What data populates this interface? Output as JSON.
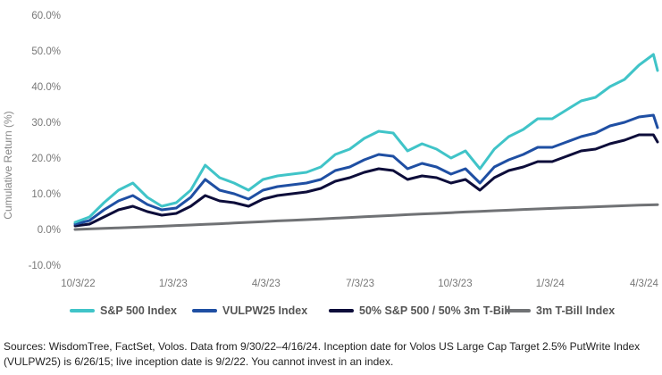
{
  "chart_data": {
    "type": "line",
    "ylabel": "Cumulative Return (%)",
    "ylim": [
      -10,
      60
    ],
    "yticks": [
      "60.0%",
      "50.0%",
      "40.0%",
      "30.0%",
      "20.0%",
      "10.0%",
      "0.0%",
      "-10.0%"
    ],
    "ytick_values": [
      60,
      50,
      40,
      30,
      20,
      10,
      0,
      -10
    ],
    "xticks": [
      "10/3/22",
      "1/3/23",
      "4/3/23",
      "7/3/23",
      "10/3/23",
      "1/3/24",
      "4/3/24"
    ],
    "grid": false,
    "legend_position": "bottom",
    "x": [
      "9/30/22",
      "10/14/22",
      "10/28/22",
      "11/11/22",
      "11/25/22",
      "12/9/22",
      "12/23/22",
      "1/6/23",
      "1/20/23",
      "2/3/23",
      "2/17/23",
      "3/3/23",
      "3/17/23",
      "3/31/23",
      "4/14/23",
      "4/28/23",
      "5/12/23",
      "5/26/23",
      "6/9/23",
      "6/23/23",
      "7/7/23",
      "7/21/23",
      "8/4/23",
      "8/18/23",
      "9/1/23",
      "9/15/23",
      "9/29/23",
      "10/13/23",
      "10/27/23",
      "11/10/23",
      "11/24/23",
      "12/8/23",
      "12/22/23",
      "1/5/24",
      "1/19/24",
      "2/2/24",
      "2/16/24",
      "3/1/24",
      "3/15/24",
      "3/29/24",
      "4/12/24",
      "4/16/24"
    ],
    "series": [
      {
        "name": "S&P 500 Index",
        "color": "#40c4c8",
        "values": [
          2.0,
          3.5,
          7.5,
          11.0,
          13.0,
          9.0,
          6.5,
          7.5,
          11.0,
          18.0,
          14.5,
          13.0,
          11.0,
          14.0,
          15.0,
          15.5,
          16.0,
          17.5,
          21.0,
          22.5,
          25.5,
          27.5,
          27.0,
          22.0,
          24.0,
          22.5,
          20.0,
          22.0,
          17.0,
          22.5,
          26.0,
          28.0,
          31.0,
          31.0,
          33.5,
          36.0,
          37.0,
          40.0,
          42.0,
          46.0,
          49.0,
          44.5
        ]
      },
      {
        "name": "VULPW25 Index",
        "color": "#1f4fa3",
        "values": [
          1.5,
          2.5,
          5.5,
          8.0,
          9.5,
          7.0,
          5.5,
          6.0,
          9.0,
          14.0,
          11.0,
          10.0,
          8.5,
          11.0,
          12.0,
          12.5,
          13.0,
          14.0,
          16.5,
          17.5,
          19.5,
          21.0,
          20.5,
          17.0,
          18.5,
          17.5,
          15.5,
          17.0,
          13.0,
          17.5,
          19.5,
          21.0,
          23.0,
          23.0,
          24.5,
          26.0,
          27.0,
          29.0,
          30.0,
          31.5,
          32.0,
          28.5
        ]
      },
      {
        "name": "50% S&P 500 / 50% 3m T-Bill",
        "color": "#0d0d3a",
        "values": [
          1.0,
          1.5,
          3.5,
          5.5,
          6.5,
          5.0,
          4.0,
          4.5,
          6.5,
          9.5,
          8.0,
          7.5,
          6.5,
          8.5,
          9.5,
          10.0,
          10.5,
          11.5,
          13.5,
          14.5,
          16.0,
          17.0,
          16.5,
          14.0,
          15.0,
          14.5,
          13.0,
          14.0,
          11.0,
          14.5,
          16.5,
          17.5,
          19.0,
          19.0,
          20.5,
          22.0,
          22.5,
          24.0,
          25.0,
          26.5,
          26.5,
          24.5
        ]
      },
      {
        "name": "3m T-Bill Index",
        "color": "#707275",
        "values": [
          0.0,
          0.15,
          0.3,
          0.45,
          0.6,
          0.75,
          0.9,
          1.1,
          1.25,
          1.45,
          1.6,
          1.8,
          2.0,
          2.2,
          2.4,
          2.55,
          2.75,
          2.95,
          3.15,
          3.35,
          3.55,
          3.75,
          3.95,
          4.15,
          4.35,
          4.5,
          4.7,
          4.9,
          5.05,
          5.25,
          5.4,
          5.6,
          5.75,
          5.9,
          6.05,
          6.2,
          6.35,
          6.5,
          6.65,
          6.8,
          6.9,
          6.95
        ]
      }
    ]
  },
  "source_text": "Sources: WisdomTree, FactSet, Volos. Data from 9/30/22–4/16/24. Inception date for Volos US Large Cap Target 2.5% PutWrite Index (VULPW25) is 6/26/15; live inception date is 9/2/22. You cannot invest in an index."
}
